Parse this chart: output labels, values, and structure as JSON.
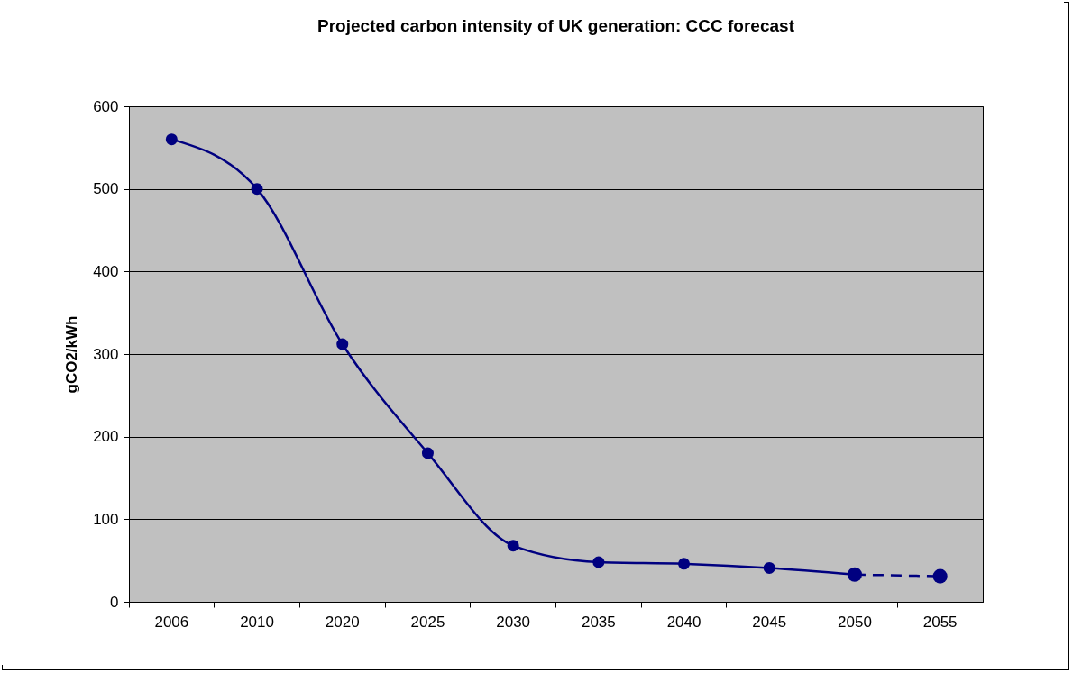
{
  "chart_data": {
    "type": "line",
    "title": "Projected carbon intensity of UK generation: CCC forecast",
    "ylabel": "gCO2/kWh",
    "categories": [
      "2006",
      "2010",
      "2020",
      "2025",
      "2030",
      "2035",
      "2040",
      "2045",
      "2050",
      "2055"
    ],
    "series": [
      {
        "color": "#000080",
        "line_style": "solid",
        "values": [
          560,
          500,
          312,
          180,
          68,
          48,
          46,
          41,
          33,
          null
        ]
      },
      {
        "color": "#000080",
        "line_style": "dashed",
        "values": [
          null,
          null,
          null,
          null,
          null,
          null,
          null,
          null,
          33,
          31
        ]
      }
    ],
    "ylim": [
      0,
      600
    ],
    "yticks": [
      0,
      100,
      200,
      300,
      400,
      500,
      600
    ],
    "grid": "y",
    "marker": "circle"
  }
}
